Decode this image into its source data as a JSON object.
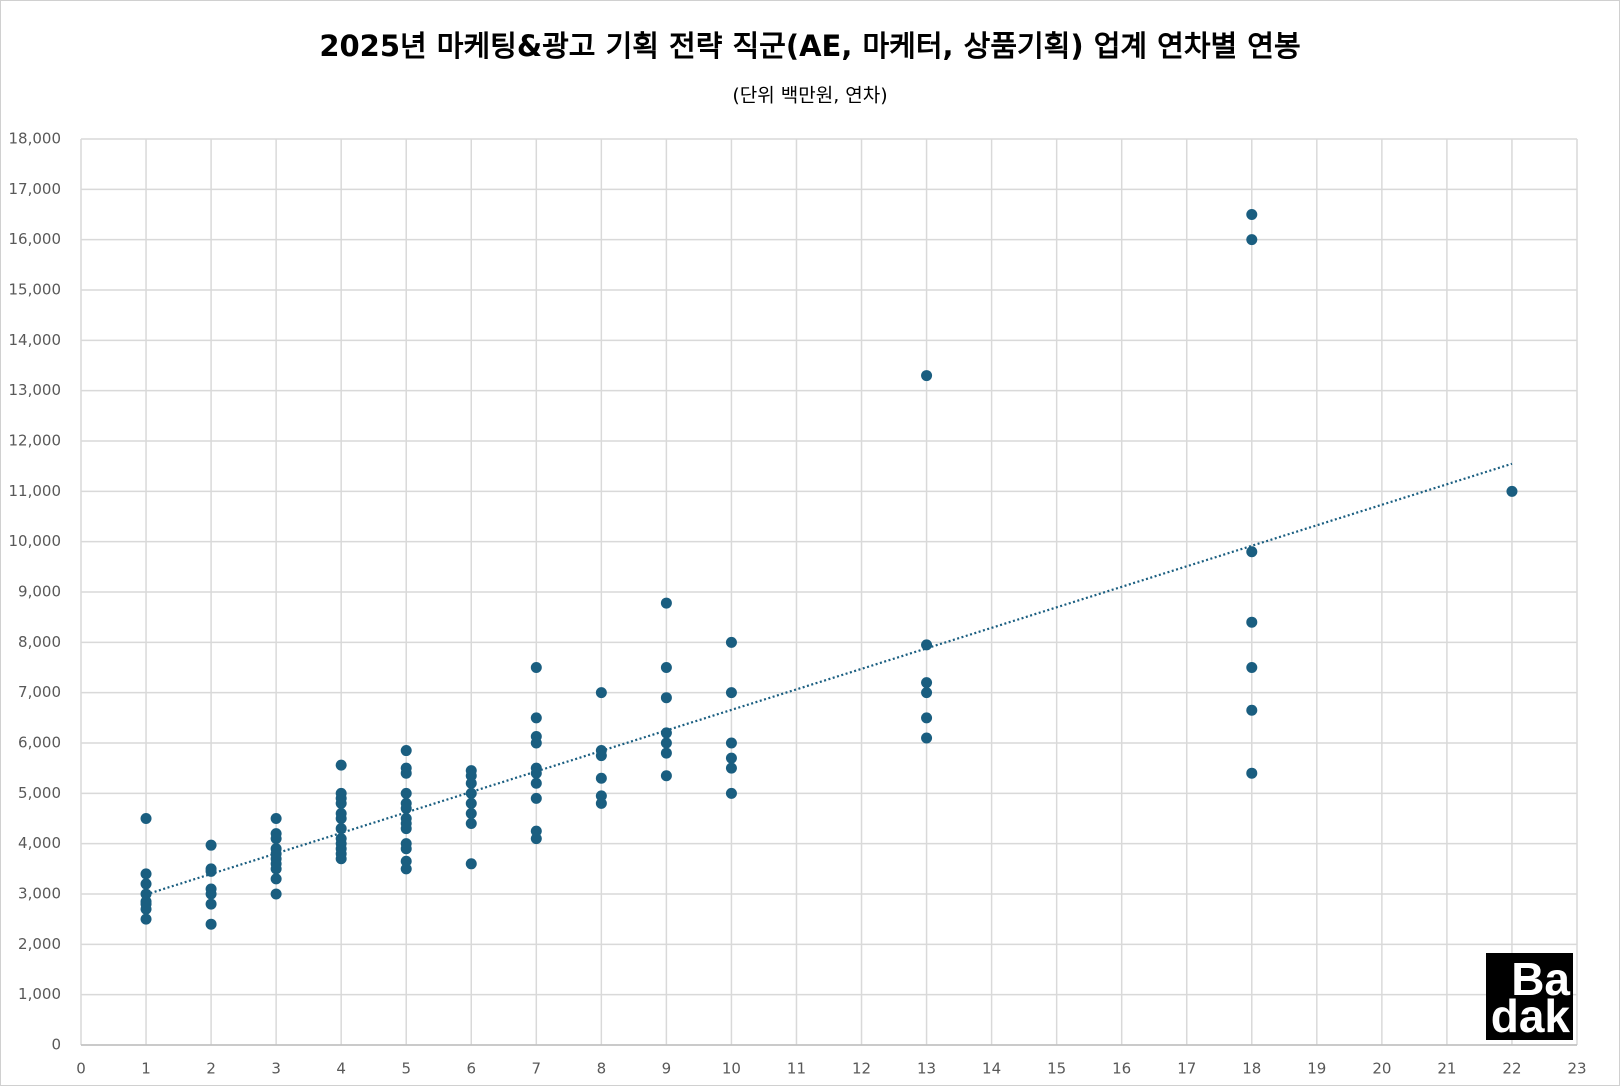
{
  "chart_data": {
    "type": "scatter",
    "title": "2025년 마케팅&광고 기획 전략 직군(AE, 마케터, 상품기획) 업계 연차별 연봉",
    "subtitle": "(단위 백만원, 연차)",
    "series": [
      {
        "color": "#1a5e80",
        "x": [
          1,
          1,
          1,
          1,
          1,
          1,
          1,
          1,
          2,
          2,
          2,
          2,
          2,
          2,
          2,
          3,
          3,
          3,
          3,
          3,
          3,
          3,
          3,
          3,
          3,
          4,
          4,
          4,
          4,
          4,
          4,
          4,
          4,
          4,
          4,
          4,
          4,
          5,
          5,
          5,
          5,
          5,
          5,
          5,
          5,
          5,
          5,
          5,
          5,
          5,
          6,
          6,
          6,
          6,
          6,
          6,
          6,
          6,
          7,
          7,
          7,
          7,
          7,
          7,
          7,
          7,
          7,
          7,
          8,
          8,
          8,
          8,
          8,
          8,
          9,
          9,
          9,
          9,
          9,
          9,
          9,
          10,
          10,
          10,
          10,
          10,
          10,
          13,
          13,
          13,
          13,
          13,
          13,
          18,
          18,
          18,
          18,
          18,
          18,
          18,
          22
        ],
        "values": [
          4500,
          3400,
          3200,
          3000,
          2850,
          2800,
          2700,
          2500,
          3970,
          3500,
          3450,
          3100,
          3000,
          2800,
          2400,
          4500,
          4200,
          4100,
          3900,
          3800,
          3700,
          3600,
          3500,
          3300,
          3000,
          5560,
          5000,
          4900,
          4800,
          4600,
          4500,
          4300,
          4100,
          4000,
          3900,
          3800,
          3700,
          5850,
          5500,
          5400,
          5000,
          4800,
          4700,
          4500,
          4400,
          4300,
          4000,
          3900,
          3650,
          3500,
          5450,
          5350,
          5200,
          5000,
          4800,
          4600,
          4400,
          3600,
          7500,
          6500,
          6130,
          6000,
          5500,
          5400,
          5200,
          4900,
          4250,
          4100,
          7000,
          5850,
          5750,
          5300,
          4950,
          4800,
          8780,
          7500,
          6900,
          6200,
          6000,
          5800,
          5350,
          8000,
          7000,
          6000,
          5700,
          5500,
          5000,
          13300,
          7950,
          7200,
          7000,
          6500,
          6100,
          16500,
          16000,
          9800,
          8400,
          7500,
          6650,
          5400,
          11000
        ]
      }
    ],
    "trendline": "linear",
    "xlim": [
      0,
      23
    ],
    "xticks": [
      0,
      1,
      2,
      3,
      4,
      5,
      6,
      7,
      8,
      9,
      10,
      11,
      12,
      13,
      14,
      15,
      16,
      17,
      18,
      19,
      20,
      21,
      22,
      23
    ],
    "ylim": [
      0,
      18000
    ],
    "yticks": [
      0,
      {
        "value": 1000,
        "label": "1,000"
      },
      {
        "value": 2000,
        "label": "2,000"
      },
      {
        "value": 3000,
        "label": "3,000"
      },
      {
        "value": 4000,
        "label": "4,000"
      },
      {
        "value": 5000,
        "label": "5,000"
      },
      {
        "value": 6000,
        "label": "6,000"
      },
      {
        "value": 7000,
        "label": "7,000"
      },
      {
        "value": 8000,
        "label": "8,000"
      },
      {
        "value": 9000,
        "label": "9,000"
      },
      {
        "value": 10000,
        "label": "10,000"
      },
      {
        "value": 11000,
        "label": "11,000"
      },
      {
        "value": 12000,
        "label": "12,000"
      },
      {
        "value": 13000,
        "label": "13,000"
      },
      {
        "value": 14000,
        "label": "14,000"
      },
      {
        "value": 15000,
        "label": "15,000"
      },
      {
        "value": 16000,
        "label": "16,000"
      },
      {
        "value": 17000,
        "label": "17,000"
      },
      {
        "value": 18000,
        "label": "18,000"
      }
    ],
    "grid": true,
    "watermark": [
      "Ba",
      "dak"
    ]
  }
}
